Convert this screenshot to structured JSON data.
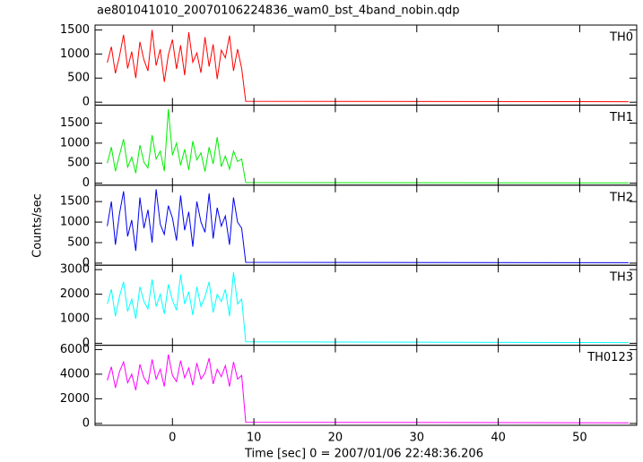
{
  "chart_data": {
    "type": "line",
    "title": "ae801041010_20070106224836_wam0_bst_4band_nobin.qdp",
    "x_label": "Time [sec] 0 = 2007/01/06 22:48:36.206",
    "y_label": "Counts/sec",
    "xlim": [
      -9.5,
      57
    ],
    "xticks": [
      0,
      10,
      20,
      30,
      40,
      50
    ],
    "x": [
      -8,
      -7.5,
      -7,
      -6.5,
      -6,
      -5.5,
      -5,
      -4.5,
      -4,
      -3.5,
      -3,
      -2.5,
      -2,
      -1.5,
      -1,
      -0.5,
      0,
      0.5,
      1,
      1.5,
      2,
      2.5,
      3,
      3.5,
      4,
      4.5,
      5,
      5.5,
      6,
      6.5,
      7,
      7.5,
      8,
      8.5,
      9,
      56
    ],
    "series": [
      {
        "name": "TH0",
        "color": "#ff0000",
        "ylim": [
          -60,
          1600
        ],
        "yticks": [
          0,
          500,
          1000,
          1500
        ],
        "values": [
          820,
          1150,
          600,
          950,
          1400,
          700,
          1050,
          500,
          1250,
          880,
          650,
          1500,
          760,
          1100,
          420,
          980,
          1300,
          690,
          1180,
          560,
          1450,
          830,
          1020,
          610,
          1350,
          740,
          1200,
          480,
          1080,
          920,
          1380,
          650,
          1100,
          700,
          20,
          10
        ]
      },
      {
        "name": "TH1",
        "color": "#00ee00",
        "ylim": [
          -50,
          1950
        ],
        "yticks": [
          0,
          500,
          1000,
          1500
        ],
        "values": [
          500,
          900,
          300,
          700,
          1100,
          400,
          650,
          250,
          950,
          520,
          380,
          1200,
          600,
          800,
          300,
          1850,
          700,
          1000,
          450,
          850,
          330,
          1050,
          580,
          760,
          290,
          900,
          480,
          1150,
          410,
          680,
          350,
          800,
          540,
          600,
          15,
          5
        ]
      },
      {
        "name": "TH2",
        "color": "#0000ee",
        "ylim": [
          -50,
          1900
        ],
        "yticks": [
          0,
          500,
          1000,
          1500
        ],
        "values": [
          900,
          1500,
          450,
          1200,
          1750,
          650,
          1050,
          300,
          1600,
          850,
          1300,
          500,
          1800,
          950,
          700,
          1400,
          1100,
          550,
          1650,
          800,
          1250,
          400,
          1500,
          1000,
          750,
          1700,
          600,
          1350,
          900,
          1150,
          450,
          1600,
          1000,
          850,
          20,
          10
        ]
      },
      {
        "name": "TH3",
        "color": "#00ffff",
        "ylim": [
          -80,
          3180
        ],
        "yticks": [
          0,
          1000,
          2000,
          3000
        ],
        "values": [
          1600,
          2200,
          1100,
          1900,
          2500,
          1300,
          1800,
          1000,
          2300,
          1700,
          1400,
          2600,
          1500,
          2000,
          1200,
          2400,
          1750,
          1350,
          2800,
          1600,
          2100,
          1150,
          2300,
          1500,
          1900,
          2500,
          1250,
          2000,
          1700,
          2200,
          1100,
          2900,
          1600,
          1800,
          60,
          30
        ]
      },
      {
        "name": "TH0123",
        "color": "#ff00ff",
        "ylim": [
          -150,
          6350
        ],
        "yticks": [
          0,
          2000,
          4000,
          6000
        ],
        "values": [
          3500,
          4600,
          2900,
          4200,
          5000,
          3300,
          4000,
          2700,
          4800,
          3700,
          3200,
          5200,
          3600,
          4400,
          3000,
          5600,
          3900,
          3400,
          5100,
          3700,
          4500,
          3100,
          4900,
          3600,
          4100,
          5300,
          3200,
          4400,
          3800,
          4700,
          3000,
          5000,
          3600,
          3900,
          100,
          50
        ]
      }
    ]
  }
}
